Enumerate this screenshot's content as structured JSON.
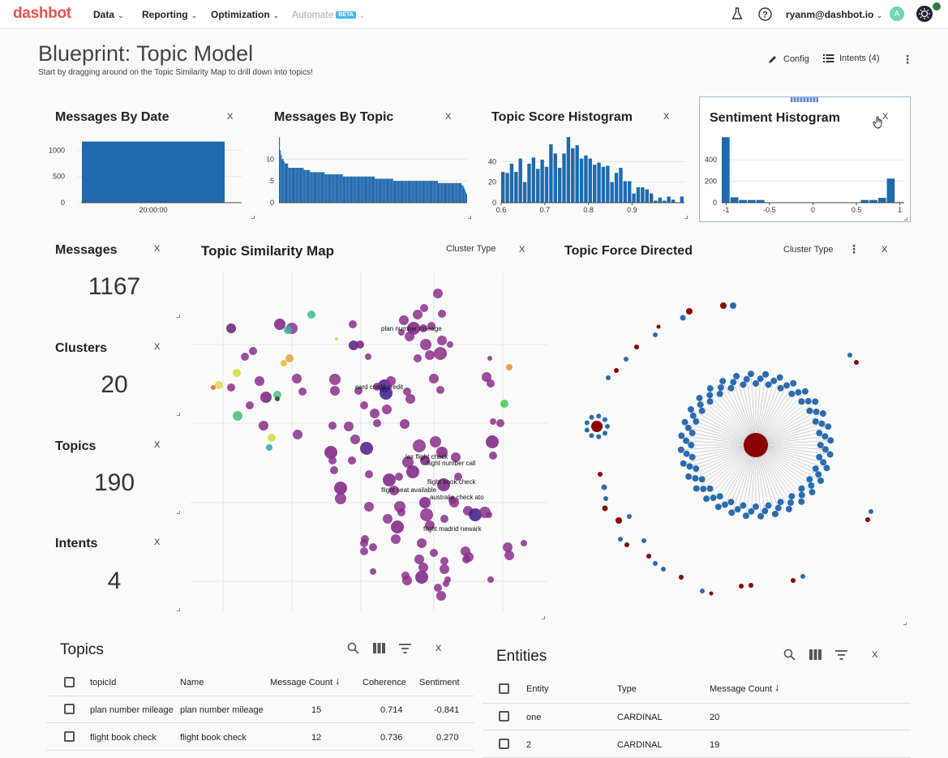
{
  "nav": {
    "logo": "dashbot",
    "items": [
      {
        "label": "Data"
      },
      {
        "label": "Reporting"
      },
      {
        "label": "Optimization"
      },
      {
        "label": "Automate",
        "badge": "BETA"
      }
    ],
    "user": "ryanm@dashbot.io",
    "avatar_letter": "A",
    "colors": {
      "brand": "#e5534b",
      "bar": "#1f6aad",
      "red_node": "#8b0000"
    }
  },
  "header": {
    "title": "Blueprint: Topic Model",
    "subtitle": "Start by dragging around on the Topic Similarity Map to drill down into topics!",
    "config_label": "Config",
    "intents_label": "Intents (4)"
  },
  "close_label": "X",
  "charts": {
    "messages_by_date": {
      "title": "Messages By Date"
    },
    "messages_by_topic": {
      "title": "Messages By Topic"
    },
    "topic_score_histogram": {
      "title": "Topic Score Histogram"
    },
    "sentiment_histogram": {
      "title": "Sentiment Histogram"
    }
  },
  "chart_data": [
    {
      "type": "bar",
      "title": "Messages By Date",
      "categories": [
        "20:00:00"
      ],
      "values": [
        1167
      ],
      "yticks": [
        "0",
        "500",
        "1000"
      ],
      "ylim": [
        0,
        1300
      ],
      "grid": true
    },
    {
      "type": "bar",
      "title": "Messages By Topic",
      "values": [
        15,
        12,
        11,
        10,
        10,
        9.5,
        9,
        9,
        9,
        9,
        8,
        8,
        8,
        8,
        8,
        8,
        8,
        8,
        8,
        8,
        8,
        8,
        8,
        8,
        8,
        8,
        8,
        7.5,
        7.5,
        7.5,
        7.5,
        7.5,
        7.5,
        7.5,
        7,
        7,
        7,
        7,
        7,
        7,
        7,
        7,
        7,
        7,
        7,
        7,
        7,
        7,
        7,
        7,
        6.5,
        6.5,
        6.5,
        6.5,
        6.5,
        6.5,
        6.5,
        6.5,
        6.5,
        6.5,
        6.5,
        6.5,
        6.5,
        6.5,
        6.5,
        6.5,
        6.5,
        6.5,
        6.5,
        6.5,
        6,
        6,
        6,
        6,
        6,
        6,
        6,
        6,
        6,
        6,
        6,
        6,
        6,
        6,
        6,
        6,
        6,
        6,
        6,
        6,
        6,
        6,
        6,
        6,
        6,
        6,
        6,
        6,
        6,
        6,
        6,
        6,
        6,
        6,
        6,
        5.5,
        5.5,
        5.5,
        5.5,
        5.5,
        5.5,
        5.5,
        5.5,
        5.5,
        5.5,
        5.5,
        5.5,
        5.5,
        5.5,
        5.5,
        5.5,
        5.5,
        5.5,
        5.5,
        5.5,
        5,
        5,
        5,
        5,
        5,
        5,
        5,
        5,
        5,
        5,
        5,
        5,
        5,
        5,
        5,
        5,
        5,
        5,
        5,
        5,
        5,
        5,
        5,
        5,
        5,
        5,
        5,
        5,
        5,
        5,
        5,
        5,
        5,
        5,
        5,
        5,
        5,
        5,
        5,
        5,
        5,
        5,
        5,
        5,
        5,
        5,
        5,
        5,
        5,
        4.5,
        4.5,
        4.5,
        4.5,
        4.5,
        4.5,
        4.5,
        4.5,
        4.5,
        4.5,
        4.5,
        4.5,
        4.5,
        4.5,
        4.5,
        4.5,
        4.5,
        4.5,
        4.5,
        4.5,
        4.5,
        4.5,
        4.5,
        4.5,
        4.5,
        4.5,
        4,
        4,
        3.5,
        3,
        2.5,
        2
      ],
      "yticks": [
        "0",
        "5",
        "10"
      ],
      "ylim": [
        0,
        16
      ],
      "grid": true
    },
    {
      "type": "bar",
      "title": "Topic Score Histogram",
      "x_start": 0.6,
      "bin_width": 0.01,
      "values": [
        30,
        29,
        38,
        30,
        43,
        20,
        38,
        44,
        33,
        42,
        35,
        57,
        48,
        34,
        48,
        64,
        53,
        56,
        43,
        46,
        43,
        37,
        39,
        35,
        36,
        20,
        29,
        34,
        21,
        21,
        9,
        15,
        15,
        13,
        9,
        2,
        5,
        2,
        6,
        3,
        0,
        6
      ],
      "xticks": [
        "0.6",
        "0.7",
        "0.8",
        "0.9"
      ],
      "yticks": [
        "0",
        "20",
        "40"
      ],
      "ylim": [
        0,
        68
      ],
      "grid": true
    },
    {
      "type": "bar",
      "title": "Sentiment Histogram",
      "x_start": -1.05,
      "bin_width": 0.1,
      "values": [
        610,
        50,
        25,
        25,
        25,
        0,
        0,
        0,
        0,
        0,
        3,
        3,
        3,
        3,
        3,
        3,
        25,
        25,
        45,
        225,
        5
      ],
      "xticks": [
        "-1",
        "-0.5",
        "0",
        "0.5",
        "1"
      ],
      "yticks": [
        "0",
        "200",
        "400"
      ],
      "ylim": [
        0,
        650
      ],
      "grid": true
    }
  ],
  "stats": [
    {
      "label": "Messages",
      "value": "1167"
    },
    {
      "label": "Clusters",
      "value": "20"
    },
    {
      "label": "Topics",
      "value": "190"
    },
    {
      "label": "Intents",
      "value": "4"
    }
  ],
  "similarity_map": {
    "title": "Topic Similarity Map",
    "cluster_type_label": "Cluster Type",
    "labels": [
      "plan number mileage",
      "card credit credit",
      "lax flight check",
      "flight number call",
      "flight book check",
      "flight seat available",
      "australia check ato",
      "flight madrid newark"
    ]
  },
  "force_directed": {
    "title": "Topic Force Directed",
    "cluster_type_label": "Cluster Type"
  },
  "topics_table": {
    "title": "Topics",
    "columns": [
      "topicId",
      "Name",
      "Message Count",
      "Coherence",
      "Sentiment"
    ],
    "rows": [
      [
        "plan number mileage",
        "plan number mileage",
        "15",
        "0.714",
        "-0.841"
      ],
      [
        "flight book check",
        "flight book check",
        "12",
        "0.736",
        "0.270"
      ]
    ]
  },
  "entities_table": {
    "title": "Entities",
    "columns": [
      "Entity",
      "Type",
      "Message Count"
    ],
    "rows": [
      [
        "one",
        "CARDINAL",
        "20"
      ],
      [
        "2",
        "CARDINAL",
        "19"
      ]
    ]
  }
}
